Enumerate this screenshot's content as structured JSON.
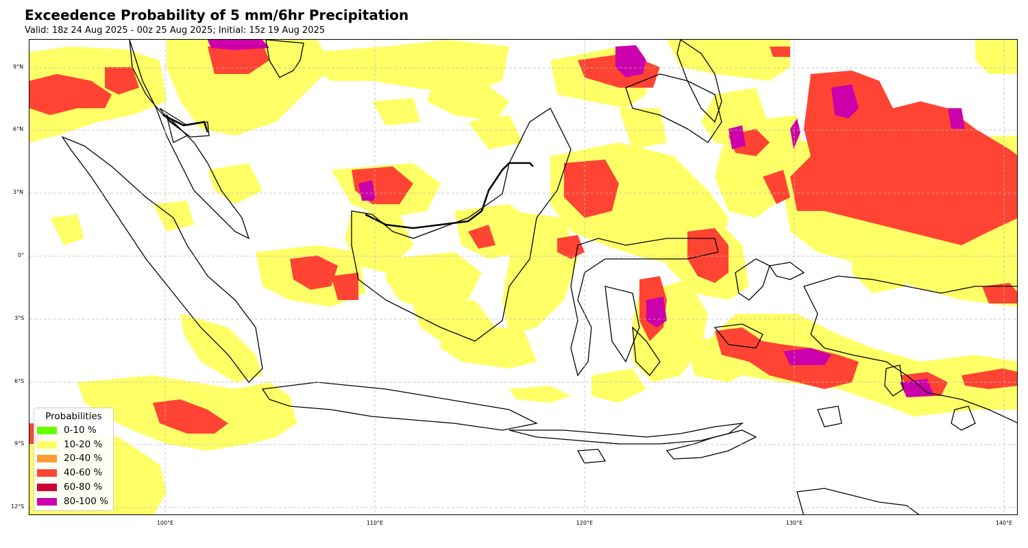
{
  "title": "Exceedence Probability of 5 mm/6hr Precipitation",
  "subtitle": "Valid: 18z 24 Aug 2025 - 00z 25 Aug 2025; Initial: 15z 19 Aug 2025",
  "lat_labels": [
    "9°N",
    "6°N",
    "3°N",
    "0°",
    "3°S",
    "6°S",
    "9°S",
    "12°S"
  ],
  "lon_labels": [
    "100°E",
    "110°E",
    "120°E",
    "130°E",
    "140°E"
  ],
  "legend": {
    "title": "Probabilities",
    "items": [
      {
        "label": "0-10 %",
        "color": "#66ff00"
      },
      {
        "label": "10-20 %",
        "color": "#ffff66"
      },
      {
        "label": "20-40 %",
        "color": "#ff9933"
      },
      {
        "label": "40-60 %",
        "color": "#ff4433"
      },
      {
        "label": "60-80 %",
        "color": "#cc0033"
      },
      {
        "label": "80-100 %",
        "color": "#cc00aa"
      }
    ]
  },
  "colors": {
    "yellow": "#ffff66",
    "red": "#ff4433",
    "magenta": "#cc00aa",
    "coast": "#000000",
    "grid": "#bbbbbb"
  }
}
